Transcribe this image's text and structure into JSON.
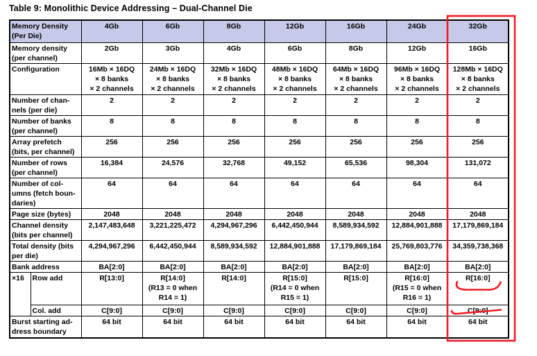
{
  "title": "Table 9: Monolithic Device Addressing – Dual-Channel Die",
  "colors": {
    "header_bg": "#c6c9e8",
    "border": "#000000",
    "text": "#000000",
    "annotation": "#ee1c25"
  },
  "table": {
    "corner_label": "Memory Density\n(Per Die)",
    "columns": [
      "4Gb",
      "6Gb",
      "8Gb",
      "12Gb",
      "16Gb",
      "24Gb",
      "32Gb"
    ],
    "rows": [
      {
        "label": "Memory density\n(per channel)",
        "values": [
          "2Gb",
          "3Gb",
          "4Gb",
          "6Gb",
          "8Gb",
          "12Gb",
          "16Gb"
        ]
      },
      {
        "label": "Configuration",
        "values": [
          "16Mb × 16DQ\n× 8 banks\n× 2 channels",
          "24Mb × 16DQ\n× 8 banks\n× 2 channels",
          "32Mb × 16DQ\n× 8 banks\n× 2 channels",
          "48Mb × 16DQ\n× 8 banks\n× 2 channels",
          "64Mb × 16DQ\n× 8 banks\n× 2 channels",
          "96Mb × 16DQ\n× 8 banks\n× 2 channels",
          "128Mb × 16DQ\n× 8 banks\n× 2 channels"
        ]
      },
      {
        "label": "Number of chan-\nnels (per die)",
        "values": [
          "2",
          "2",
          "2",
          "2",
          "2",
          "2",
          "2"
        ]
      },
      {
        "label": "Number of banks\n(per channel)",
        "values": [
          "8",
          "8",
          "8",
          "8",
          "8",
          "8",
          "8"
        ]
      },
      {
        "label": "Array prefetch\n(bits, per channel)",
        "values": [
          "256",
          "256",
          "256",
          "256",
          "256",
          "256",
          "256"
        ]
      },
      {
        "label": "Number of rows\n(per channel)",
        "values": [
          "16,384",
          "24,576",
          "32,768",
          "49,152",
          "65,536",
          "98,304",
          "131,072"
        ]
      },
      {
        "label": "Number of col-\numns (fetch boun-\ndaries)",
        "values": [
          "64",
          "64",
          "64",
          "64",
          "64",
          "64",
          "64"
        ]
      },
      {
        "label": "Page size (bytes)",
        "values": [
          "2048",
          "2048",
          "2048",
          "2048",
          "2048",
          "2048",
          "2048"
        ]
      },
      {
        "label": "Channel density\n(bits per channel)",
        "values": [
          "2,147,483,648",
          "3,221,225,472",
          "4,294,967,296",
          "6,442,450,944",
          "8,589,934,592",
          "12,884,901,888",
          "17,179,869,184"
        ]
      },
      {
        "label": "Total density (bits\nper die)",
        "values": [
          "4,294,967,296",
          "6,442,450,944",
          "8,589,934,592",
          "12,884,901,888",
          "17,179,869,184",
          "25,769,803,776",
          "34,359,738,368"
        ]
      },
      {
        "label": "Bank address",
        "values": [
          "BA[2:0]",
          "BA[2:0]",
          "BA[2:0]",
          "BA[2:0]",
          "BA[2:0]",
          "BA[2:0]",
          "BA[2:0]"
        ]
      },
      {
        "prefix": "×16",
        "label": "Row add",
        "values": [
          "R[13:0]",
          "R[14:0]\n(R13 = 0 when\nR14 = 1)",
          "R[14:0]",
          "R[15:0]\n(R14 = 0 when\nR15 = 1)",
          "R[15:0]",
          "R[16:0]\n(R15 = 0 when\nR16 = 1)",
          "R[16:0]"
        ]
      },
      {
        "sub": true,
        "label": "Col. add",
        "values": [
          "C[9:0]",
          "C[9:0]",
          "C[9:0]",
          "C[9:0]",
          "C[9:0]",
          "C[9:0]",
          "C[9:0]"
        ]
      },
      {
        "label": "Burst starting ad-\ndress boundary",
        "values": [
          "64 bit",
          "64 bit",
          "64 bit",
          "64 bit",
          "64 bit",
          "64 bit",
          "64 bit"
        ]
      }
    ]
  },
  "annotations": {
    "highlighted_column": "32Gb",
    "underlined_values": [
      "R[16:0]",
      "C[9:0]"
    ]
  }
}
